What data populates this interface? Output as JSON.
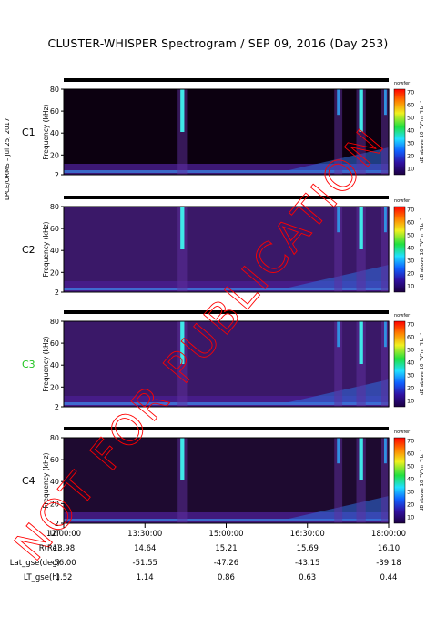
{
  "title": "CLUSTER-WHISPER Spectrogram / SEP 09, 2016 (Day 253)",
  "side_note": "LPCE/ORMS – Jul 25, 2017",
  "watermark": "NOT FOR PUBLICATION",
  "colors": {
    "watermark": "#ff0000",
    "c3_label": "#22c422",
    "background": "#000000",
    "spectrum_low": "#1a0a3a",
    "spectrum_mid": "#5a2a8a",
    "spectrum_high": "#30e0e0"
  },
  "chart_data": [
    {
      "type": "heatmap",
      "panel_label": "C1",
      "ylabel": "Frequency (kHz)",
      "yticks": [
        "80",
        "60",
        "40",
        "20",
        "2"
      ],
      "ylim": [
        2,
        80
      ],
      "xlim": [
        "12:00:00",
        "18:00:00"
      ],
      "colorbar": {
        "top_label": "nowfer",
        "ticks": [
          "70",
          "60",
          "50",
          "40",
          "30",
          "20",
          "10"
        ],
        "label": "dB above 10⁻⁸V²m⁻²Hz⁻¹"
      },
      "background_level": "low"
    },
    {
      "type": "heatmap",
      "panel_label": "C2",
      "ylabel": "Frequency (kHz)",
      "yticks": [
        "80",
        "60",
        "40",
        "20",
        "2"
      ],
      "ylim": [
        2,
        80
      ],
      "xlim": [
        "12:00:00",
        "18:00:00"
      ],
      "colorbar": {
        "top_label": "nowfer",
        "ticks": [
          "70",
          "60",
          "50",
          "40",
          "30",
          "20",
          "10"
        ],
        "label": "dB above 10⁻⁸V²m⁻²Hz⁻¹"
      },
      "background_level": "high"
    },
    {
      "type": "heatmap",
      "panel_label": "C3",
      "ylabel": "Frequency (kHz)",
      "yticks": [
        "80",
        "60",
        "40",
        "20",
        "2"
      ],
      "ylim": [
        2,
        80
      ],
      "xlim": [
        "12:00:00",
        "18:00:00"
      ],
      "colorbar": {
        "top_label": "nowfer",
        "ticks": [
          "70",
          "60",
          "50",
          "40",
          "30",
          "20",
          "10"
        ],
        "label": "dB above 10⁻⁸V²m⁻²Hz⁻¹"
      },
      "background_level": "high"
    },
    {
      "type": "heatmap",
      "panel_label": "C4",
      "ylabel": "Frequency (kHz)",
      "yticks": [
        "80",
        "60",
        "40",
        "20",
        "2"
      ],
      "ylim": [
        2,
        80
      ],
      "xlim": [
        "12:00:00",
        "18:00:00"
      ],
      "colorbar": {
        "top_label": "nowfer",
        "ticks": [
          "70",
          "60",
          "50",
          "40",
          "30",
          "20",
          "10"
        ],
        "label": "dB above 10⁻⁸V²m⁻²Hz⁻¹"
      },
      "background_level": "medium"
    }
  ],
  "footer": {
    "rows": [
      {
        "label": "UT",
        "values": [
          "12:00:00",
          "13:30:00",
          "15:00:00",
          "16:30:00",
          "18:00:00"
        ]
      },
      {
        "label": "R(Re)",
        "values": [
          "13.98",
          "14.64",
          "15.21",
          "15.69",
          "16.10"
        ]
      },
      {
        "label": "Lat_gse(deg)",
        "values": [
          "-56.00",
          "-51.55",
          "-47.26",
          "-43.15",
          "-39.18"
        ]
      },
      {
        "label": "LT_gse(h)",
        "values": [
          "1.52",
          "1.14",
          "0.86",
          "0.63",
          "0.44"
        ]
      }
    ]
  }
}
